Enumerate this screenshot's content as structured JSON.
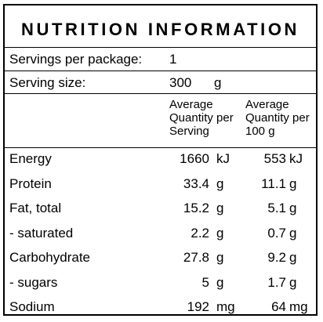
{
  "title": "NUTRITION INFORMATION",
  "servings": {
    "label": "Servings per package:",
    "value": "1"
  },
  "serving_size": {
    "label": "Serving size:",
    "value": "300",
    "unit": "g"
  },
  "columns": {
    "per_serving": [
      "Average",
      "Quantity per",
      "Serving"
    ],
    "per_100g": [
      "Average",
      "Quantity per",
      "100 g"
    ]
  },
  "rows": [
    {
      "name": "Energy",
      "serving": "1660",
      "serving_unit": "kJ",
      "per100": "553",
      "per100_unit": "kJ"
    },
    {
      "name": "Protein",
      "serving": "33.4",
      "serving_unit": "g",
      "per100": "11.1",
      "per100_unit": "g"
    },
    {
      "name": "Fat, total",
      "serving": "15.2",
      "serving_unit": "g",
      "per100": "5.1",
      "per100_unit": "g"
    },
    {
      "name": "- saturated",
      "serving": "2.2",
      "serving_unit": "g",
      "per100": "0.7",
      "per100_unit": "g"
    },
    {
      "name": "Carbohydrate",
      "serving": "27.8",
      "serving_unit": "g",
      "per100": "9.2",
      "per100_unit": "g"
    },
    {
      "name": "- sugars",
      "serving": "5",
      "serving_unit": "g",
      "per100": "1.7",
      "per100_unit": "g"
    },
    {
      "name": "Sodium",
      "serving": "192",
      "serving_unit": "mg",
      "per100": "64",
      "per100_unit": "mg"
    }
  ]
}
